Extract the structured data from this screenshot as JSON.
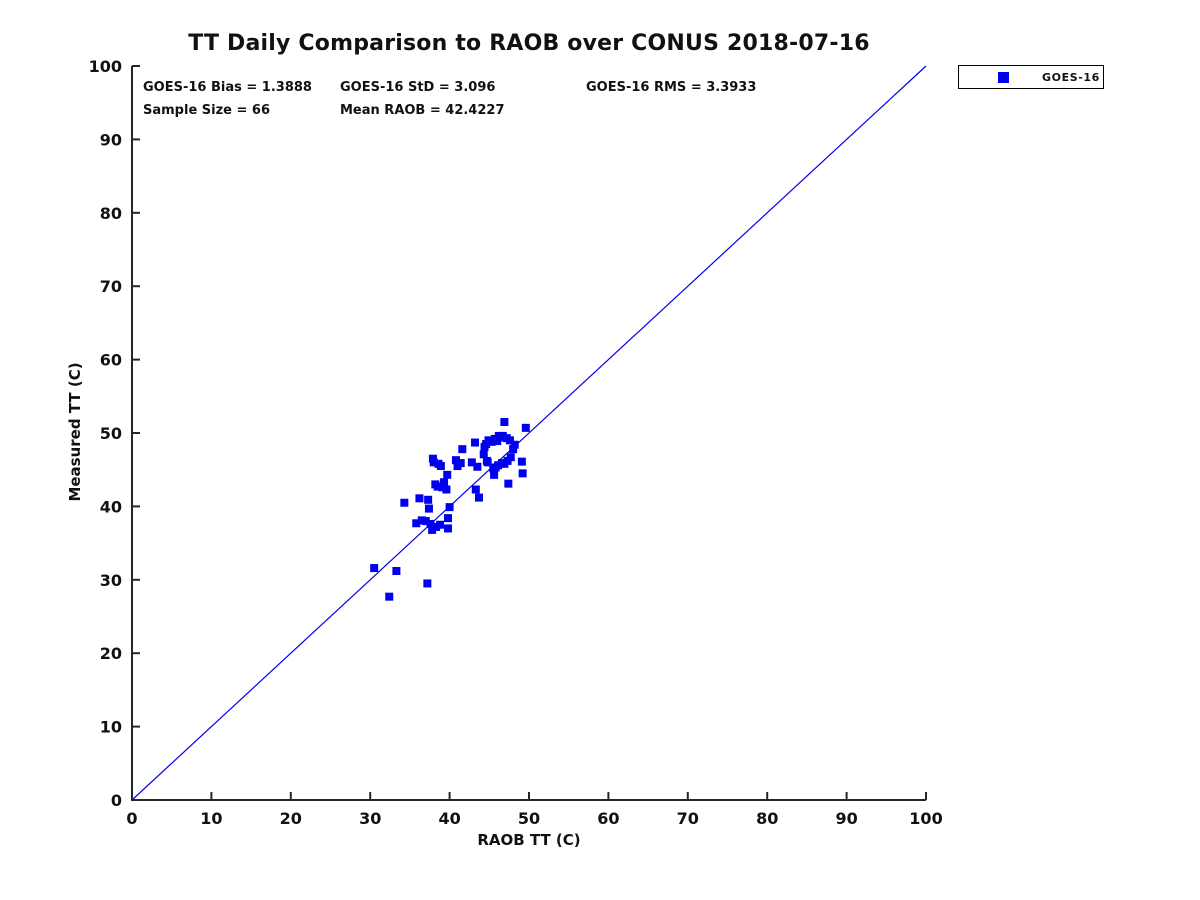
{
  "figure": {
    "title": "TT Daily Comparison to RAOB over CONUS 2018-07-16",
    "stats": {
      "bias": "GOES-16 Bias = 1.3888",
      "std": "GOES-16 StD = 3.096",
      "rms": "GOES-16 RMS = 3.3933",
      "sample_size": "Sample Size = 66",
      "mean_raob": "Mean RAOB = 42.4227"
    },
    "legend": {
      "position": "top-right-outside",
      "items": [
        {
          "label": "GOES-16",
          "marker": "square",
          "marker_color": "#0000f0"
        }
      ]
    },
    "colors": {
      "marker": "#0000f0",
      "reference_line": "#0000f0",
      "axis": "#262626",
      "text": "#111111",
      "background": "#ffffff"
    }
  },
  "chart_data": {
    "type": "scatter",
    "title": "TT Daily Comparison to RAOB over CONUS 2018-07-16",
    "xlabel": "RAOB TT (C)",
    "ylabel": "Measured TT (C)",
    "xlim": [
      0,
      100
    ],
    "ylim": [
      0,
      100
    ],
    "xticks": [
      0,
      10,
      20,
      30,
      40,
      50,
      60,
      70,
      80,
      90,
      100
    ],
    "yticks": [
      0,
      10,
      20,
      30,
      40,
      50,
      60,
      70,
      80,
      90,
      100
    ],
    "grid": false,
    "legend_position": "top-right-outside",
    "reference_line": {
      "from": [
        0,
        0
      ],
      "to": [
        100,
        100
      ],
      "color": "#0000f0",
      "width": 1.2
    },
    "series": [
      {
        "name": "GOES-16",
        "marker": "square",
        "color": "#0000f0",
        "marker_size_px": 8,
        "points": [
          [
            46.9,
            51.5
          ],
          [
            49.6,
            50.7
          ],
          [
            46.2,
            49.6
          ],
          [
            43.2,
            48.7
          ],
          [
            41.6,
            47.8
          ],
          [
            44.6,
            48.5
          ],
          [
            45.7,
            49.2
          ],
          [
            46.7,
            49.6
          ],
          [
            47.6,
            49.0
          ],
          [
            48.0,
            47.8
          ],
          [
            47.7,
            46.7
          ],
          [
            46.9,
            45.8
          ],
          [
            45.8,
            45.3
          ],
          [
            44.8,
            46.0
          ],
          [
            44.3,
            47.1
          ],
          [
            42.8,
            46.0
          ],
          [
            41.4,
            45.9
          ],
          [
            37.9,
            46.5
          ],
          [
            38.9,
            45.5
          ],
          [
            39.7,
            44.3
          ],
          [
            39.3,
            43.3
          ],
          [
            38.5,
            42.7
          ],
          [
            39.6,
            42.3
          ],
          [
            49.1,
            46.1
          ],
          [
            49.2,
            44.5
          ],
          [
            47.4,
            43.1
          ],
          [
            43.3,
            42.3
          ],
          [
            43.7,
            41.2
          ],
          [
            36.2,
            41.1
          ],
          [
            37.3,
            40.9
          ],
          [
            37.4,
            39.7
          ],
          [
            34.3,
            40.5
          ],
          [
            40.0,
            39.9
          ],
          [
            39.8,
            38.4
          ],
          [
            36.5,
            38.1
          ],
          [
            37.6,
            37.6
          ],
          [
            35.8,
            37.7
          ],
          [
            38.8,
            37.5
          ],
          [
            39.8,
            37.0
          ],
          [
            37.8,
            36.8
          ],
          [
            30.5,
            31.6
          ],
          [
            33.3,
            31.2
          ],
          [
            37.2,
            29.5
          ],
          [
            32.4,
            27.7
          ],
          [
            40.8,
            46.3
          ],
          [
            43.5,
            45.4
          ],
          [
            44.4,
            48.1
          ],
          [
            46.0,
            48.9
          ],
          [
            46.5,
            49.4
          ],
          [
            47.2,
            49.3
          ],
          [
            45.3,
            48.8
          ],
          [
            44.9,
            49.0
          ],
          [
            46.1,
            45.6
          ],
          [
            46.6,
            45.9
          ],
          [
            47.3,
            46.2
          ],
          [
            45.5,
            45.2
          ],
          [
            44.7,
            46.2
          ],
          [
            48.2,
            48.4
          ],
          [
            45.6,
            44.3
          ],
          [
            38.2,
            43.0
          ],
          [
            39.1,
            42.6
          ],
          [
            38.0,
            46.0
          ],
          [
            38.6,
            45.8
          ],
          [
            37.0,
            38.0
          ],
          [
            38.3,
            37.2
          ],
          [
            41.0,
            45.5
          ]
        ]
      }
    ]
  }
}
